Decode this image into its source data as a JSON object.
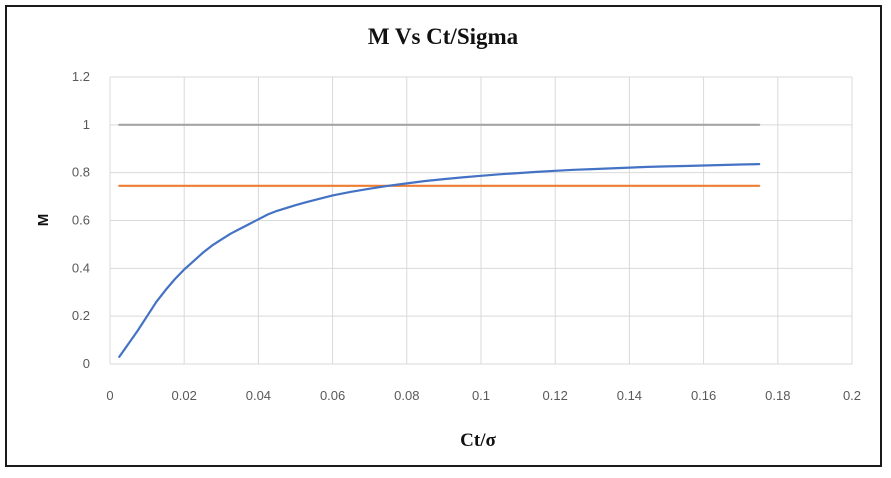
{
  "chart_data": {
    "type": "line",
    "title": "M Vs Ct/Sigma",
    "xlabel": "Ct/σ",
    "ylabel": "M",
    "xlim": [
      0,
      0.2
    ],
    "ylim": [
      0,
      1.2
    ],
    "xticks": [
      "0",
      "0.02",
      "0.04",
      "0.06",
      "0.08",
      "0.1",
      "0.12",
      "0.14",
      "0.16",
      "0.18",
      "0.2"
    ],
    "yticks": [
      "0",
      "0.2",
      "0.4",
      "0.6",
      "0.8",
      "1",
      "1.2"
    ],
    "grid": true,
    "legend": "none",
    "series": [
      {
        "color": "#4472C4",
        "x": [
          0.0025,
          0.0075,
          0.0125,
          0.015,
          0.0175,
          0.02,
          0.0225,
          0.025,
          0.0275,
          0.03,
          0.0325,
          0.035,
          0.0375,
          0.04,
          0.0425,
          0.045,
          0.0475,
          0.05,
          0.0525,
          0.055,
          0.06,
          0.065,
          0.07,
          0.075,
          0.08,
          0.085,
          0.09,
          0.095,
          0.1,
          0.105,
          0.11,
          0.115,
          0.12,
          0.125,
          0.13,
          0.135,
          0.14,
          0.145,
          0.15,
          0.155,
          0.16,
          0.165,
          0.17,
          0.175
        ],
        "y": [
          0.03,
          0.14,
          0.26,
          0.31,
          0.355,
          0.395,
          0.43,
          0.465,
          0.495,
          0.52,
          0.545,
          0.565,
          0.585,
          0.605,
          0.625,
          0.64,
          0.652,
          0.664,
          0.675,
          0.685,
          0.705,
          0.72,
          0.733,
          0.745,
          0.755,
          0.765,
          0.773,
          0.78,
          0.787,
          0.793,
          0.798,
          0.803,
          0.808,
          0.812,
          0.815,
          0.818,
          0.821,
          0.824,
          0.826,
          0.828,
          0.83,
          0.832,
          0.834,
          0.836
        ]
      },
      {
        "color": "#ED7D31",
        "x": [
          0.0025,
          0.175
        ],
        "y": [
          0.745,
          0.745
        ]
      },
      {
        "color": "#A5A5A5",
        "x": [
          0.0025,
          0.175
        ],
        "y": [
          1.0,
          1.0
        ]
      }
    ]
  }
}
